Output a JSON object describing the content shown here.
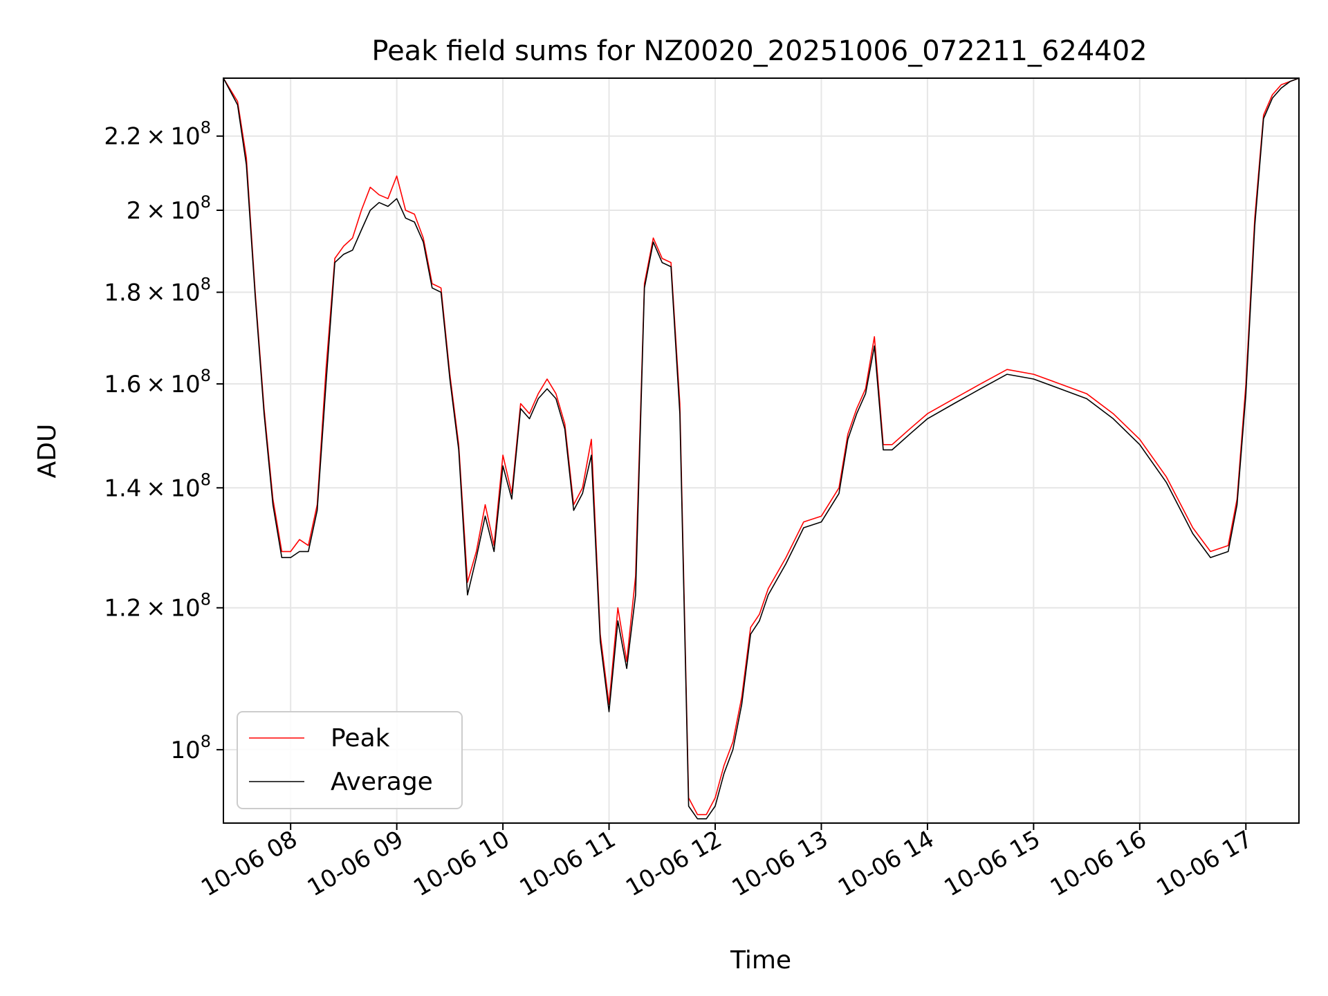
{
  "chart_data": {
    "type": "line",
    "title": "Peak field sums for NZ0020_20251006_072211_624402",
    "xlabel": "Time",
    "ylabel": "ADU",
    "yscale": "log",
    "xlim": [
      "10-06 07:22",
      "10-06 17:30"
    ],
    "ylim": [
      91000000,
      237000000
    ],
    "x_ticks": [
      "10-06 08",
      "10-06 09",
      "10-06 10",
      "10-06 11",
      "10-06 12",
      "10-06 13",
      "10-06 14",
      "10-06 15",
      "10-06 16",
      "10-06 17"
    ],
    "y_ticks": [
      {
        "value": 100000000,
        "mantissa": "",
        "exp": "8"
      },
      {
        "value": 120000000,
        "mantissa": "1.2",
        "exp": "8"
      },
      {
        "value": 140000000,
        "mantissa": "1.4",
        "exp": "8"
      },
      {
        "value": 160000000,
        "mantissa": "1.6",
        "exp": "8"
      },
      {
        "value": 180000000,
        "mantissa": "1.8",
        "exp": "8"
      },
      {
        "value": 200000000,
        "mantissa": "2",
        "exp": "8"
      },
      {
        "value": 220000000,
        "mantissa": "2.2",
        "exp": "8"
      }
    ],
    "grid": true,
    "legend_position": "lower-left",
    "series": [
      {
        "name": "Peak",
        "color": "#ff0000",
        "x": [
          "10-06 07:22",
          "10-06 07:30",
          "10-06 07:35",
          "10-06 07:40",
          "10-06 07:45",
          "10-06 07:50",
          "10-06 07:55",
          "10-06 08:00",
          "10-06 08:05",
          "10-06 08:10",
          "10-06 08:15",
          "10-06 08:20",
          "10-06 08:25",
          "10-06 08:30",
          "10-06 08:35",
          "10-06 08:40",
          "10-06 08:45",
          "10-06 08:50",
          "10-06 08:55",
          "10-06 09:00",
          "10-06 09:05",
          "10-06 09:10",
          "10-06 09:15",
          "10-06 09:20",
          "10-06 09:25",
          "10-06 09:30",
          "10-06 09:35",
          "10-06 09:40",
          "10-06 09:45",
          "10-06 09:50",
          "10-06 09:55",
          "10-06 10:00",
          "10-06 10:05",
          "10-06 10:10",
          "10-06 10:15",
          "10-06 10:20",
          "10-06 10:25",
          "10-06 10:30",
          "10-06 10:35",
          "10-06 10:40",
          "10-06 10:45",
          "10-06 10:50",
          "10-06 10:55",
          "10-06 11:00",
          "10-06 11:05",
          "10-06 11:10",
          "10-06 11:15",
          "10-06 11:20",
          "10-06 11:25",
          "10-06 11:30",
          "10-06 11:35",
          "10-06 11:40",
          "10-06 11:45",
          "10-06 11:50",
          "10-06 11:55",
          "10-06 12:00",
          "10-06 12:05",
          "10-06 12:10",
          "10-06 12:15",
          "10-06 12:20",
          "10-06 12:25",
          "10-06 12:30",
          "10-06 12:40",
          "10-06 12:50",
          "10-06 13:00",
          "10-06 13:10",
          "10-06 13:15",
          "10-06 13:20",
          "10-06 13:25",
          "10-06 13:30",
          "10-06 13:35",
          "10-06 13:40",
          "10-06 13:50",
          "10-06 14:00",
          "10-06 14:15",
          "10-06 14:30",
          "10-06 14:45",
          "10-06 15:00",
          "10-06 15:15",
          "10-06 15:30",
          "10-06 15:45",
          "10-06 16:00",
          "10-06 16:15",
          "10-06 16:30",
          "10-06 16:40",
          "10-06 16:50",
          "10-06 16:55",
          "10-06 17:00",
          "10-06 17:05",
          "10-06 17:10",
          "10-06 17:15",
          "10-06 17:20",
          "10-06 17:25",
          "10-06 17:30"
        ],
        "y": [
          237000000,
          230000000,
          214000000,
          180000000,
          155000000,
          138000000,
          129000000,
          129000000,
          131000000,
          130000000,
          137000000,
          163000000,
          188000000,
          191000000,
          193000000,
          200000000,
          206000000,
          204000000,
          203000000,
          209000000,
          200000000,
          199000000,
          193000000,
          182000000,
          181000000,
          162000000,
          148000000,
          124000000,
          129000000,
          137000000,
          130000000,
          146000000,
          139000000,
          156000000,
          154000000,
          158000000,
          161000000,
          158000000,
          152000000,
          137000000,
          140000000,
          149000000,
          116000000,
          106000000,
          120000000,
          112000000,
          125000000,
          182000000,
          193000000,
          188000000,
          187000000,
          156000000,
          94000000,
          92000000,
          92000000,
          94000000,
          98000000,
          101000000,
          107000000,
          117000000,
          119000000,
          123000000,
          128000000,
          134000000,
          135000000,
          140000000,
          150000000,
          155000000,
          159000000,
          170000000,
          148000000,
          148000000,
          151000000,
          154000000,
          157000000,
          160000000,
          163000000,
          162000000,
          160000000,
          158000000,
          154000000,
          149000000,
          142000000,
          133000000,
          129000000,
          130000000,
          138000000,
          160000000,
          198000000,
          226000000,
          232000000,
          235000000,
          236000000,
          237000000
        ]
      },
      {
        "name": "Average",
        "color": "#000000",
        "x": [
          "10-06 07:22",
          "10-06 07:30",
          "10-06 07:35",
          "10-06 07:40",
          "10-06 07:45",
          "10-06 07:50",
          "10-06 07:55",
          "10-06 08:00",
          "10-06 08:05",
          "10-06 08:10",
          "10-06 08:15",
          "10-06 08:20",
          "10-06 08:25",
          "10-06 08:30",
          "10-06 08:35",
          "10-06 08:40",
          "10-06 08:45",
          "10-06 08:50",
          "10-06 08:55",
          "10-06 09:00",
          "10-06 09:05",
          "10-06 09:10",
          "10-06 09:15",
          "10-06 09:20",
          "10-06 09:25",
          "10-06 09:30",
          "10-06 09:35",
          "10-06 09:40",
          "10-06 09:45",
          "10-06 09:50",
          "10-06 09:55",
          "10-06 10:00",
          "10-06 10:05",
          "10-06 10:10",
          "10-06 10:15",
          "10-06 10:20",
          "10-06 10:25",
          "10-06 10:30",
          "10-06 10:35",
          "10-06 10:40",
          "10-06 10:45",
          "10-06 10:50",
          "10-06 10:55",
          "10-06 11:00",
          "10-06 11:05",
          "10-06 11:10",
          "10-06 11:15",
          "10-06 11:20",
          "10-06 11:25",
          "10-06 11:30",
          "10-06 11:35",
          "10-06 11:40",
          "10-06 11:45",
          "10-06 11:50",
          "10-06 11:55",
          "10-06 12:00",
          "10-06 12:05",
          "10-06 12:10",
          "10-06 12:15",
          "10-06 12:20",
          "10-06 12:25",
          "10-06 12:30",
          "10-06 12:40",
          "10-06 12:50",
          "10-06 13:00",
          "10-06 13:10",
          "10-06 13:15",
          "10-06 13:20",
          "10-06 13:25",
          "10-06 13:30",
          "10-06 13:35",
          "10-06 13:40",
          "10-06 13:50",
          "10-06 14:00",
          "10-06 14:15",
          "10-06 14:30",
          "10-06 14:45",
          "10-06 15:00",
          "10-06 15:15",
          "10-06 15:30",
          "10-06 15:45",
          "10-06 16:00",
          "10-06 16:15",
          "10-06 16:30",
          "10-06 16:40",
          "10-06 16:50",
          "10-06 16:55",
          "10-06 17:00",
          "10-06 17:05",
          "10-06 17:10",
          "10-06 17:15",
          "10-06 17:20",
          "10-06 17:25",
          "10-06 17:30"
        ],
        "y": [
          237000000,
          229000000,
          212000000,
          179000000,
          154000000,
          137000000,
          128000000,
          128000000,
          129000000,
          129000000,
          136000000,
          160000000,
          187000000,
          189000000,
          190000000,
          195000000,
          200000000,
          202000000,
          201000000,
          203000000,
          198000000,
          197000000,
          192000000,
          181000000,
          180000000,
          161000000,
          147000000,
          122000000,
          128000000,
          135000000,
          129000000,
          144000000,
          138000000,
          155000000,
          153000000,
          157000000,
          159000000,
          157000000,
          151000000,
          136000000,
          139000000,
          146000000,
          115000000,
          105000000,
          118000000,
          111000000,
          122000000,
          181000000,
          192000000,
          187000000,
          186000000,
          154000000,
          93000000,
          91500000,
          91500000,
          93000000,
          97000000,
          100000000,
          106000000,
          116000000,
          118000000,
          122000000,
          127000000,
          133000000,
          134000000,
          139000000,
          149000000,
          154000000,
          158000000,
          168000000,
          147000000,
          147000000,
          150000000,
          153000000,
          156000000,
          159000000,
          162000000,
          161000000,
          159000000,
          157000000,
          153000000,
          148000000,
          141000000,
          132000000,
          128000000,
          129000000,
          137000000,
          158000000,
          196000000,
          225000000,
          231000000,
          234000000,
          236000000,
          237000000
        ]
      }
    ]
  }
}
